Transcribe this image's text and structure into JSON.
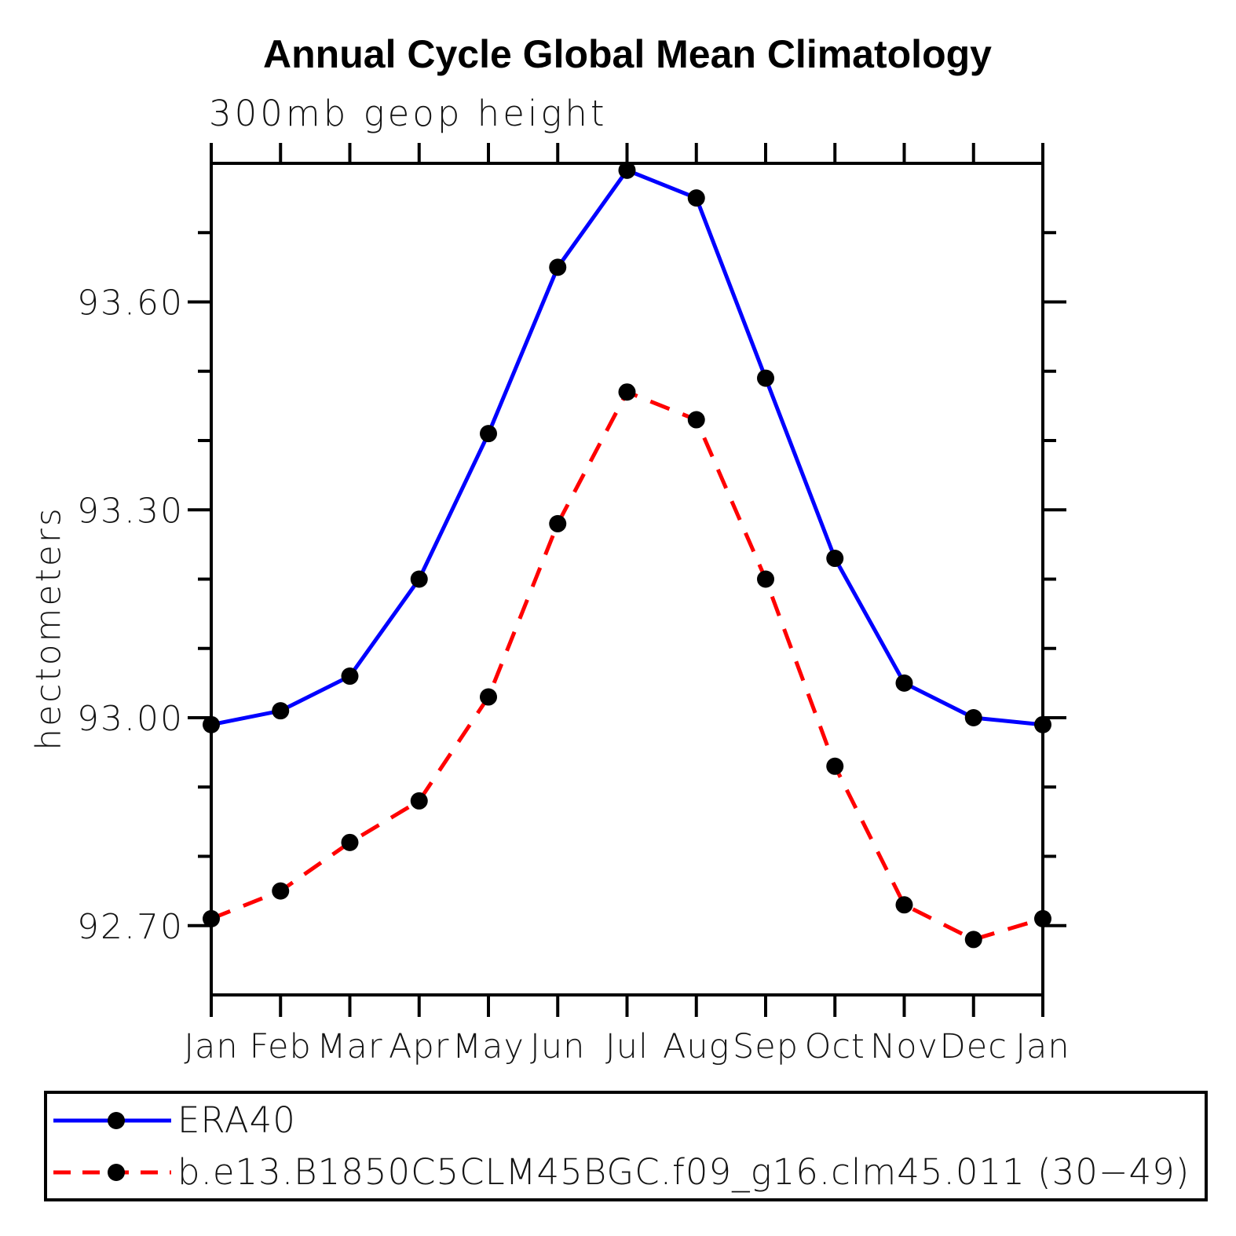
{
  "header": {
    "title": "Annual Cycle Global Mean Climatology",
    "subtitle": "300mb geop height"
  },
  "chart_data": {
    "type": "line",
    "title": "Annual Cycle Global Mean Climatology",
    "subtitle": "300mb geop height",
    "ylabel": "hectometers",
    "categories": [
      "Jan",
      "Feb",
      "Mar",
      "Apr",
      "May",
      "Jun",
      "Jul",
      "Aug",
      "Sep",
      "Oct",
      "Nov",
      "Dec",
      "Jan"
    ],
    "ylim": [
      92.6,
      93.8
    ],
    "yticks": {
      "major": [
        92.7,
        93.0,
        93.3,
        93.6
      ],
      "labels": [
        "92.70",
        "93.00",
        "93.30",
        "93.60"
      ],
      "minor_step": 0.1
    },
    "grid": false,
    "legend_position": "bottom-box",
    "series": [
      {
        "name": "ERA40",
        "color": "#0000ff",
        "style": "solid",
        "marker": "circle",
        "marker_color": "#000000",
        "values": [
          92.99,
          93.01,
          93.06,
          93.2,
          93.41,
          93.65,
          93.79,
          93.75,
          93.49,
          93.23,
          93.05,
          93.0,
          92.99
        ]
      },
      {
        "name": "b.e13.B1850C5CLM45BGC.f09_g16.clm45.011 (30−49)",
        "color": "#ff0000",
        "style": "dashed",
        "marker": "circle",
        "marker_color": "#000000",
        "values": [
          92.71,
          92.75,
          92.82,
          92.88,
          93.03,
          93.28,
          93.47,
          93.43,
          93.2,
          92.93,
          92.73,
          92.68,
          92.71
        ]
      }
    ],
    "axis_color": "#000000"
  }
}
